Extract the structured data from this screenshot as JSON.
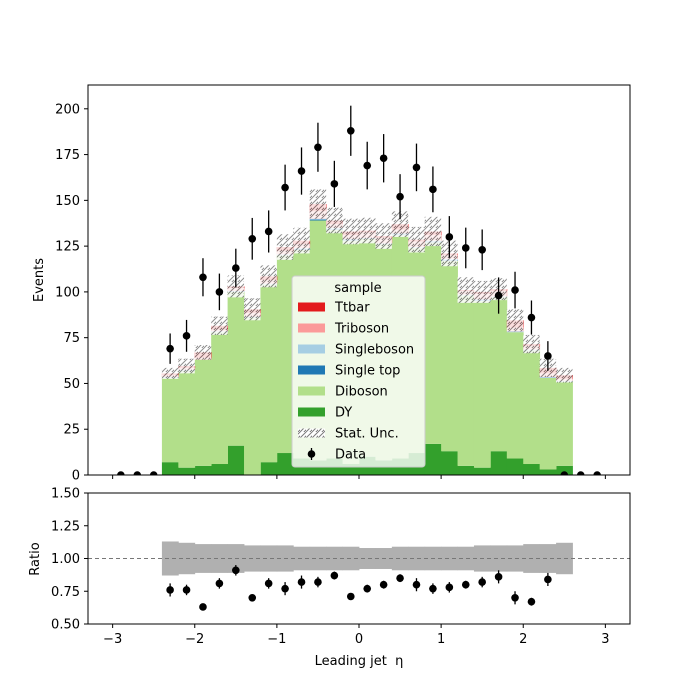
{
  "chart_data": [
    {
      "type": "bar",
      "subtype": "stacked-histogram",
      "title": "",
      "xlabel": "Leading jet  η",
      "ylabel": "Events",
      "xlim": [
        -3.3,
        3.3
      ],
      "ylim": [
        0,
        213
      ],
      "x_ticks": [
        "−3",
        "−2",
        "−1",
        "0",
        "1",
        "2",
        "3"
      ],
      "y_ticks": [
        "0",
        "25",
        "50",
        "75",
        "100",
        "125",
        "150",
        "175",
        "200"
      ],
      "bin_edges": [
        -3.0,
        -2.8,
        -2.6,
        -2.4,
        -2.2,
        -2.0,
        -1.8,
        -1.6,
        -1.4,
        -1.2,
        -1.0,
        -0.8,
        -0.6,
        -0.4,
        -0.2,
        0.0,
        0.2,
        0.4,
        0.6,
        0.8,
        1.0,
        1.2,
        1.4,
        1.6,
        1.8,
        2.0,
        2.2,
        2.4,
        2.6,
        2.8,
        3.0
      ],
      "series": [
        {
          "name": "DY",
          "color": "#33a02c",
          "values": [
            0,
            0,
            0,
            7,
            4,
            5,
            6,
            16,
            0,
            7,
            12,
            9,
            8,
            9,
            6,
            10,
            8,
            9,
            12,
            17,
            13,
            5,
            4,
            13,
            9,
            6,
            3,
            5,
            0,
            0
          ]
        },
        {
          "name": "Diboson",
          "color": "#b2df8a",
          "values": [
            0,
            0,
            0,
            46,
            53,
            58,
            72,
            84,
            86,
            97,
            108,
            114,
            131,
            125,
            122,
            119,
            118,
            122,
            112,
            110,
            104,
            93,
            91,
            84,
            69,
            62,
            50,
            46,
            0,
            0
          ]
        },
        {
          "name": "Single top",
          "color": "#1f78b4",
          "values": [
            0,
            0,
            0,
            0,
            0,
            0,
            0,
            0,
            0,
            0,
            0,
            0.5,
            0.5,
            0.5,
            0.5,
            0,
            0,
            0.5,
            0,
            0.5,
            0.5,
            0,
            0.5,
            0,
            0,
            0,
            0,
            0,
            0,
            0
          ]
        },
        {
          "name": "Singleboson",
          "color": "#a6cee3",
          "values": [
            0,
            0,
            0,
            0.5,
            0.5,
            0,
            0.5,
            0.5,
            0.5,
            0.5,
            0.5,
            0.5,
            0.5,
            0.5,
            0.5,
            0.5,
            0.5,
            0.5,
            0.5,
            0.5,
            0.5,
            0.5,
            0.5,
            0.5,
            0.5,
            0.5,
            0.5,
            0.5,
            0,
            0
          ]
        },
        {
          "name": "Triboson",
          "color": "#fb9a99",
          "values": [
            0,
            0,
            0,
            1,
            1,
            1,
            1,
            1.5,
            2,
            2,
            2,
            2,
            4,
            2,
            2,
            3,
            3,
            2,
            3,
            3,
            2,
            2,
            3,
            3,
            2,
            2,
            2,
            1,
            0,
            0
          ]
        },
        {
          "name": "Ttbar",
          "color": "#e31a1c",
          "values": [
            0,
            0,
            0,
            1,
            1,
            3,
            2,
            1,
            2,
            2,
            2,
            2,
            4,
            2,
            2,
            1,
            1,
            3,
            1,
            2,
            1,
            0.5,
            1,
            1,
            4,
            1,
            3,
            2,
            0,
            0
          ]
        }
      ],
      "stat_unc": [
        0,
        0,
        0,
        3,
        4,
        4,
        5,
        6,
        6,
        6,
        7,
        7,
        8,
        7,
        7,
        7,
        7,
        7,
        7,
        8,
        7,
        7,
        6,
        6,
        6,
        5,
        5,
        4,
        0,
        0
      ],
      "data": {
        "name": "Data",
        "x": [
          -2.9,
          -2.7,
          -2.5,
          -2.3,
          -2.1,
          -1.9,
          -1.7,
          -1.5,
          -1.3,
          -1.1,
          -0.9,
          -0.7,
          -0.5,
          -0.3,
          -0.1,
          0.1,
          0.3,
          0.5,
          0.7,
          0.9,
          1.1,
          1.3,
          1.5,
          1.7,
          1.9,
          2.1,
          2.3,
          2.5,
          2.7,
          2.9
        ],
        "y": [
          0,
          0,
          0,
          69,
          76,
          108,
          100,
          113,
          129,
          133,
          157,
          166,
          179,
          159,
          188,
          169,
          173,
          152,
          168,
          156,
          130,
          124,
          123,
          98,
          101,
          86,
          65,
          0,
          0,
          0
        ],
        "yerr": [
          0,
          0,
          0,
          8.3,
          8.7,
          10.4,
          10,
          10.6,
          11.4,
          11.5,
          12.5,
          12.9,
          13.4,
          12.6,
          13.7,
          13,
          13.2,
          12.3,
          13,
          12.5,
          11.4,
          11.1,
          11.1,
          9.9,
          10,
          9.3,
          8.1,
          0,
          0,
          0
        ]
      },
      "legend": {
        "title": "sample",
        "placement": "center",
        "entries": [
          "Ttbar",
          "Triboson",
          "Singleboson",
          "Single top",
          "Diboson",
          "DY",
          "Stat. Unc.",
          "Data"
        ]
      }
    },
    {
      "type": "scatter",
      "subtype": "ratio-panel",
      "xlabel": "Leading jet  η",
      "ylabel": "Ratio",
      "xlim": [
        -3.3,
        3.3
      ],
      "ylim": [
        0.5,
        1.5
      ],
      "x_ticks": [
        "−3",
        "−2",
        "−1",
        "0",
        "1",
        "2",
        "3"
      ],
      "y_ticks": [
        "0.50",
        "0.75",
        "1.00",
        "1.25",
        "1.50"
      ],
      "reference_line": 1.0,
      "unc_band": {
        "x_range": [
          -2.4,
          2.2
        ],
        "half_width": [
          0.13,
          0.12,
          0.11,
          0.11,
          0.11,
          0.1,
          0.1,
          0.1,
          0.09,
          0.09,
          0.09,
          0.09,
          0.08,
          0.08,
          0.09,
          0.09,
          0.09,
          0.09,
          0.09,
          0.1,
          0.1,
          0.1,
          0.11,
          0.11,
          0.12
        ]
      },
      "points": {
        "x": [
          -2.3,
          -2.1,
          -1.9,
          -1.7,
          -1.5,
          -1.3,
          -1.1,
          -0.9,
          -0.7,
          -0.5,
          -0.3,
          -0.1,
          0.1,
          0.3,
          0.5,
          0.7,
          0.9,
          1.1,
          1.3,
          1.5,
          1.7,
          1.9,
          2.1,
          2.3
        ],
        "y": [
          0.76,
          0.76,
          0.63,
          0.81,
          0.91,
          0.7,
          0.81,
          0.77,
          0.82,
          0.82,
          0.87,
          0.71,
          0.77,
          0.8,
          0.85,
          0.8,
          0.77,
          0.78,
          0.8,
          0.82,
          0.86,
          0.7,
          0.67,
          0.84
        ],
        "yerr": [
          0.05,
          0.04,
          0.02,
          0.04,
          0.04,
          0.02,
          0.04,
          0.05,
          0.05,
          0.04,
          0.03,
          0.02,
          0.03,
          0.03,
          0.03,
          0.05,
          0.04,
          0.04,
          0.03,
          0.04,
          0.05,
          0.05,
          0.03,
          0.05
        ]
      }
    }
  ]
}
